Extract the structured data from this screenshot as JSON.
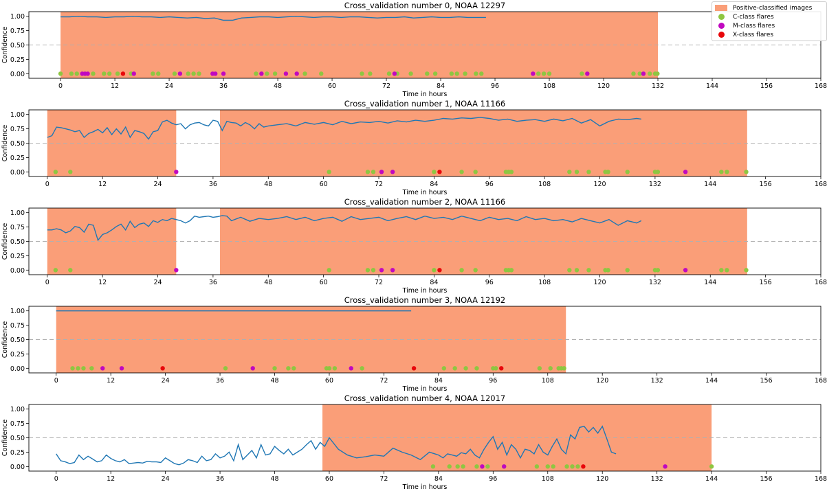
{
  "legend": {
    "items": [
      {
        "label": "Positive-classified images",
        "kind": "patch",
        "color": "#fa9e78"
      },
      {
        "label": "C-class flares",
        "kind": "dot",
        "color": "#8ec641"
      },
      {
        "label": "M-class flares",
        "kind": "dot",
        "color": "#c008c0"
      },
      {
        "label": "X-class flares",
        "kind": "dot",
        "color": "#e8070b"
      }
    ]
  },
  "colors": {
    "line": "#1f77b4",
    "shade": "#fa9e78",
    "c_flare": "#8ec641",
    "m_flare": "#c008c0",
    "x_flare": "#e8070b",
    "threshold": "#b0b0b0"
  },
  "chart_data": [
    {
      "type": "line",
      "title": "Cross_validation number 0, NOAA 12297",
      "xlabel": "Time in hours",
      "ylabel": "Confidence",
      "xlim": [
        -7,
        168
      ],
      "ylim": [
        -0.08,
        1.08
      ],
      "xticks": [
        0,
        12,
        24,
        36,
        48,
        60,
        72,
        84,
        96,
        108,
        120,
        132,
        144,
        156,
        168
      ],
      "yticks": [
        "0.00",
        "0.25",
        "0.50",
        "0.75",
        "1.00"
      ],
      "threshold": 0.5,
      "positive_intervals": [
        [
          0,
          132
        ]
      ],
      "series_x": [
        0,
        2,
        4,
        6,
        8,
        10,
        12,
        14,
        16,
        18,
        20,
        22,
        24,
        26,
        28,
        30,
        32,
        34,
        36,
        38,
        40,
        42,
        44,
        46,
        48,
        50,
        52,
        54,
        56,
        58,
        60,
        62,
        64,
        66,
        68,
        70,
        72,
        74,
        76,
        78,
        80,
        82,
        84,
        86,
        88,
        90,
        92,
        94
      ],
      "series_y": [
        0.99,
        0.99,
        1.0,
        0.99,
        0.99,
        0.98,
        0.99,
        0.99,
        1.0,
        0.99,
        0.99,
        0.98,
        0.99,
        0.98,
        0.97,
        0.98,
        0.96,
        0.97,
        0.93,
        0.93,
        0.97,
        0.98,
        0.99,
        0.99,
        0.98,
        0.99,
        1.0,
        0.99,
        0.98,
        0.99,
        0.99,
        0.98,
        0.99,
        0.99,
        0.98,
        0.97,
        0.98,
        0.98,
        0.99,
        0.97,
        0.98,
        0.99,
        0.98,
        0.98,
        0.99,
        0.98,
        0.98,
        0.98
      ],
      "c_flares": [
        0,
        2.4,
        3.6,
        7.2,
        9.6,
        10.8,
        12.6,
        15.6,
        20.4,
        21.6,
        25.2,
        28.2,
        29.4,
        30.6,
        43.2,
        45.6,
        47.4,
        54,
        57.6,
        66.6,
        68.4,
        72.6,
        74.4,
        77.4,
        81,
        82.8,
        86.4,
        87.6,
        89.4,
        91.8,
        93,
        105.6,
        106.8,
        108,
        115.2,
        126.6,
        128,
        130.2,
        131.4,
        131.9
      ],
      "m_flares": [
        4.8,
        5.4,
        6,
        16.2,
        26.4,
        33.6,
        34.2,
        36,
        44.4,
        49.8,
        52.2,
        73.8,
        104.4,
        116.4,
        128.8
      ],
      "x_flares": [
        13.8
      ]
    },
    {
      "type": "line",
      "title": "Cross_validation number 1, NOAA 11166",
      "xlabel": "Time in hours",
      "ylabel": "Confidence",
      "xlim": [
        -4,
        168
      ],
      "ylim": [
        -0.08,
        1.08
      ],
      "xticks": [
        0,
        12,
        24,
        36,
        48,
        60,
        72,
        84,
        96,
        108,
        120,
        132,
        144,
        156,
        168
      ],
      "yticks": [
        "0.00",
        "0.25",
        "0.50",
        "0.75",
        "1.00"
      ],
      "threshold": 0.5,
      "positive_intervals": [
        [
          0,
          28
        ],
        [
          37.5,
          152
        ]
      ],
      "series_x": [
        0,
        1,
        2,
        3,
        4,
        5,
        6,
        7,
        8,
        9,
        10,
        11,
        12,
        13,
        14,
        15,
        16,
        17,
        18,
        19,
        20,
        21,
        22,
        23,
        24,
        25,
        26,
        27,
        28,
        29,
        30,
        31,
        32,
        33,
        34,
        35,
        36,
        37,
        38,
        39,
        40,
        41,
        42,
        43,
        44,
        45,
        46,
        47,
        48,
        50,
        52,
        54,
        56,
        58,
        60,
        62,
        64,
        66,
        68,
        70,
        72,
        74,
        76,
        78,
        80,
        82,
        84,
        86,
        88,
        90,
        92,
        94,
        96,
        98,
        100,
        102,
        104,
        106,
        108,
        110,
        112,
        114,
        116,
        118,
        120,
        122,
        124,
        126,
        128,
        129
      ],
      "series_y": [
        0.6,
        0.63,
        0.78,
        0.77,
        0.75,
        0.73,
        0.7,
        0.72,
        0.6,
        0.67,
        0.7,
        0.74,
        0.68,
        0.77,
        0.65,
        0.75,
        0.66,
        0.78,
        0.6,
        0.72,
        0.7,
        0.67,
        0.57,
        0.7,
        0.72,
        0.87,
        0.9,
        0.85,
        0.82,
        0.84,
        0.75,
        0.82,
        0.85,
        0.86,
        0.82,
        0.8,
        0.9,
        0.88,
        0.72,
        0.88,
        0.86,
        0.85,
        0.8,
        0.86,
        0.82,
        0.75,
        0.84,
        0.78,
        0.8,
        0.82,
        0.84,
        0.8,
        0.86,
        0.83,
        0.86,
        0.82,
        0.88,
        0.84,
        0.87,
        0.86,
        0.88,
        0.85,
        0.89,
        0.87,
        0.9,
        0.88,
        0.9,
        0.93,
        0.92,
        0.94,
        0.93,
        0.95,
        0.93,
        0.9,
        0.92,
        0.88,
        0.9,
        0.91,
        0.88,
        0.92,
        0.89,
        0.93,
        0.85,
        0.91,
        0.8,
        0.88,
        0.92,
        0.91,
        0.93,
        0.92
      ],
      "c_flares": [
        1.8,
        5,
        61.2,
        69.6,
        70.8,
        84,
        90,
        93,
        99.6,
        100.2,
        100.8,
        113.4,
        115,
        117.6,
        121.2,
        121.8,
        126,
        132,
        132.6,
        146.4,
        147.6,
        151.8
      ],
      "m_flares": [
        28,
        72.6,
        75,
        138.6
      ],
      "x_flares": [
        85.2
      ]
    },
    {
      "type": "line",
      "title": "Cross_validation number 2, NOAA 11166",
      "xlabel": "Time in hours",
      "ylabel": "Confidence",
      "xlim": [
        -4,
        168
      ],
      "ylim": [
        -0.08,
        1.08
      ],
      "xticks": [
        0,
        12,
        24,
        36,
        48,
        60,
        72,
        84,
        96,
        108,
        120,
        132,
        144,
        156,
        168
      ],
      "yticks": [
        "0.00",
        "0.25",
        "0.50",
        "0.75",
        "1.00"
      ],
      "threshold": 0.5,
      "positive_intervals": [
        [
          0,
          28
        ],
        [
          37.5,
          152
        ]
      ],
      "series_x": [
        0,
        1,
        2,
        3,
        4,
        5,
        6,
        7,
        8,
        9,
        10,
        11,
        12,
        13,
        14,
        15,
        16,
        17,
        18,
        19,
        20,
        21,
        22,
        23,
        24,
        25,
        26,
        27,
        28,
        29,
        30,
        31,
        32,
        33,
        34,
        35,
        36,
        37,
        38,
        39,
        40,
        42,
        44,
        46,
        48,
        50,
        52,
        54,
        56,
        58,
        60,
        62,
        64,
        66,
        68,
        70,
        72,
        74,
        76,
        78,
        80,
        82,
        84,
        86,
        88,
        90,
        92,
        94,
        96,
        98,
        100,
        102,
        104,
        106,
        108,
        110,
        112,
        114,
        116,
        118,
        120,
        122,
        124,
        126,
        128,
        129
      ],
      "series_y": [
        0.7,
        0.7,
        0.72,
        0.7,
        0.65,
        0.68,
        0.76,
        0.74,
        0.66,
        0.8,
        0.78,
        0.52,
        0.62,
        0.65,
        0.7,
        0.76,
        0.8,
        0.7,
        0.85,
        0.74,
        0.8,
        0.82,
        0.76,
        0.86,
        0.83,
        0.88,
        0.86,
        0.9,
        0.88,
        0.86,
        0.82,
        0.86,
        0.94,
        0.92,
        0.93,
        0.94,
        0.92,
        0.93,
        0.95,
        0.94,
        0.86,
        0.92,
        0.85,
        0.9,
        0.88,
        0.9,
        0.93,
        0.88,
        0.92,
        0.86,
        0.9,
        0.92,
        0.85,
        0.93,
        0.88,
        0.9,
        0.92,
        0.86,
        0.9,
        0.93,
        0.88,
        0.94,
        0.9,
        0.92,
        0.88,
        0.94,
        0.9,
        0.86,
        0.92,
        0.88,
        0.9,
        0.86,
        0.93,
        0.88,
        0.9,
        0.86,
        0.88,
        0.84,
        0.9,
        0.86,
        0.82,
        0.88,
        0.78,
        0.86,
        0.82,
        0.86
      ],
      "c_flares": [
        1.8,
        5,
        61.2,
        69.6,
        70.8,
        84,
        90,
        93,
        99.6,
        100.2,
        100.8,
        113.4,
        115,
        117.6,
        121.2,
        121.8,
        126,
        132,
        132.6,
        146.4,
        147.6,
        151.8
      ],
      "m_flares": [
        28,
        72.6,
        75,
        138.6
      ],
      "x_flares": [
        85.2
      ]
    },
    {
      "type": "line",
      "title": "Cross_validation number 3, NOAA 12192",
      "xlabel": "Time in hours",
      "ylabel": "Confidence",
      "xlim": [
        -6,
        168
      ],
      "ylim": [
        -0.08,
        1.08
      ],
      "xticks": [
        0,
        12,
        24,
        36,
        48,
        60,
        72,
        84,
        96,
        108,
        120,
        132,
        144,
        156,
        168
      ],
      "yticks": [
        "0.00",
        "0.25",
        "0.50",
        "0.75",
        "1.00"
      ],
      "threshold": 0.5,
      "positive_intervals": [
        [
          0,
          112
        ]
      ],
      "series_x": [
        0,
        10,
        20,
        30,
        40,
        50,
        60,
        70,
        78
      ],
      "series_y": [
        1.0,
        1.0,
        1.0,
        1.0,
        1.0,
        1.0,
        1.0,
        1.0,
        1.0
      ],
      "c_flares": [
        3.6,
        4.8,
        6,
        7.8,
        37.2,
        48,
        51,
        52.2,
        59.4,
        60,
        61.2,
        67.2,
        85.2,
        87.6,
        90,
        92.4,
        96,
        96.6,
        106.2,
        108.6,
        110.4,
        111,
        111.6
      ],
      "m_flares": [
        10.2,
        14.4,
        43.2,
        64.8
      ],
      "x_flares": [
        23.4,
        78.6,
        97.8
      ]
    },
    {
      "type": "line",
      "title": "Cross_validation number 4, NOAA 12017",
      "xlabel": "Time in hours",
      "ylabel": "Confidence",
      "xlim": [
        -6,
        168
      ],
      "ylim": [
        -0.08,
        1.08
      ],
      "xticks": [
        0,
        12,
        24,
        36,
        48,
        60,
        72,
        84,
        96,
        108,
        120,
        132,
        144,
        156,
        168
      ],
      "yticks": [
        "0.00",
        "0.25",
        "0.50",
        "0.75",
        "1.00"
      ],
      "threshold": 0.5,
      "positive_intervals": [
        [
          58.5,
          144
        ]
      ],
      "series_x": [
        0,
        1,
        2,
        3,
        4,
        5,
        6,
        7,
        8,
        9,
        10,
        11,
        12,
        13,
        14,
        15,
        16,
        17,
        18,
        19,
        20,
        21,
        22,
        23,
        24,
        25,
        26,
        27,
        28,
        29,
        30,
        31,
        32,
        33,
        34,
        35,
        36,
        37,
        38,
        39,
        40,
        41,
        42,
        43,
        44,
        45,
        46,
        47,
        48,
        49,
        50,
        51,
        52,
        53,
        54,
        55,
        56,
        57,
        58,
        59,
        60,
        62,
        64,
        66,
        68,
        70,
        72,
        74,
        76,
        78,
        80,
        82,
        84,
        85,
        86,
        87,
        88,
        89,
        90,
        91,
        92,
        93,
        94,
        95,
        96,
        97,
        98,
        99,
        100,
        101,
        102,
        103,
        104,
        105,
        106,
        107,
        108,
        109,
        110,
        111,
        112,
        113,
        114,
        115,
        116,
        117,
        118,
        119,
        120,
        121,
        122,
        123
      ],
      "series_y": [
        0.22,
        0.1,
        0.08,
        0.05,
        0.07,
        0.2,
        0.12,
        0.18,
        0.13,
        0.08,
        0.1,
        0.2,
        0.14,
        0.1,
        0.08,
        0.12,
        0.05,
        0.06,
        0.07,
        0.06,
        0.09,
        0.08,
        0.08,
        0.07,
        0.15,
        0.1,
        0.05,
        0.03,
        0.06,
        0.12,
        0.1,
        0.07,
        0.18,
        0.1,
        0.12,
        0.22,
        0.15,
        0.18,
        0.25,
        0.1,
        0.38,
        0.12,
        0.2,
        0.28,
        0.15,
        0.38,
        0.2,
        0.22,
        0.35,
        0.28,
        0.22,
        0.3,
        0.2,
        0.25,
        0.3,
        0.38,
        0.45,
        0.3,
        0.42,
        0.35,
        0.5,
        0.3,
        0.2,
        0.15,
        0.17,
        0.2,
        0.18,
        0.32,
        0.25,
        0.2,
        0.12,
        0.25,
        0.2,
        0.15,
        0.22,
        0.2,
        0.18,
        0.24,
        0.22,
        0.3,
        0.2,
        0.15,
        0.3,
        0.42,
        0.52,
        0.3,
        0.42,
        0.2,
        0.38,
        0.3,
        0.15,
        0.3,
        0.28,
        0.22,
        0.38,
        0.25,
        0.2,
        0.35,
        0.48,
        0.3,
        0.22,
        0.55,
        0.48,
        0.68,
        0.7,
        0.6,
        0.68,
        0.58,
        0.7,
        0.48,
        0.25,
        0.22
      ],
      "c_flares": [
        82.8,
        86.4,
        88.2,
        89.4,
        92.4,
        94.8,
        98.4,
        105.6,
        108,
        109.2,
        112.2,
        113.4,
        114.6,
        144
      ],
      "m_flares": [
        93.6,
        98.4,
        133.8
      ],
      "x_flares": [
        115.8
      ]
    }
  ]
}
